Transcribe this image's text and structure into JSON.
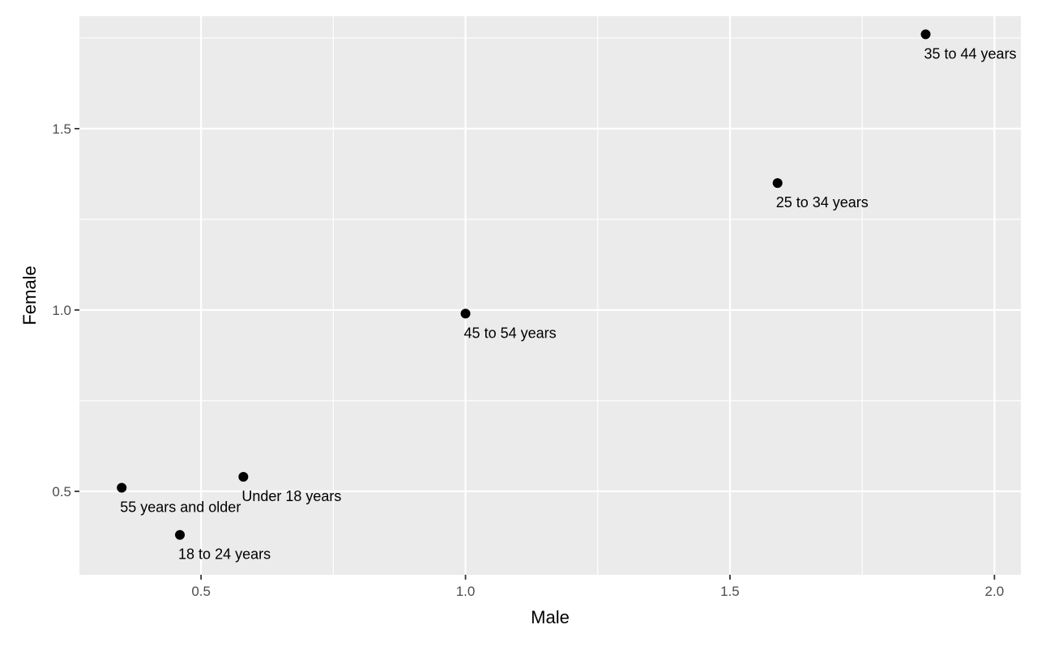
{
  "chart_data": {
    "type": "scatter",
    "title": "",
    "xlabel": "Male",
    "ylabel": "Female",
    "xlim": [
      0.27,
      2.05
    ],
    "ylim": [
      0.27,
      1.81
    ],
    "x_ticks": [
      0.5,
      1.0,
      1.5,
      2.0
    ],
    "x_tick_labels": [
      "0.5",
      "1.0",
      "1.5",
      "2.0"
    ],
    "y_ticks": [
      0.5,
      1.0,
      1.5
    ],
    "y_tick_labels": [
      "0.5",
      "1.0",
      "1.5"
    ],
    "grid": true,
    "legend": "none",
    "point_color": "#000000",
    "panel_color": "#EBEBEB",
    "points": [
      {
        "label": "Under 18 years",
        "x": 0.58,
        "y": 0.54
      },
      {
        "label": "18 to 24 years",
        "x": 0.46,
        "y": 0.38
      },
      {
        "label": "25 to 34 years",
        "x": 1.59,
        "y": 1.35
      },
      {
        "label": "35 to 44 years",
        "x": 1.87,
        "y": 1.76
      },
      {
        "label": "45 to 54 years",
        "x": 1.0,
        "y": 0.99
      },
      {
        "label": "55 years and older",
        "x": 0.35,
        "y": 0.51
      }
    ]
  }
}
